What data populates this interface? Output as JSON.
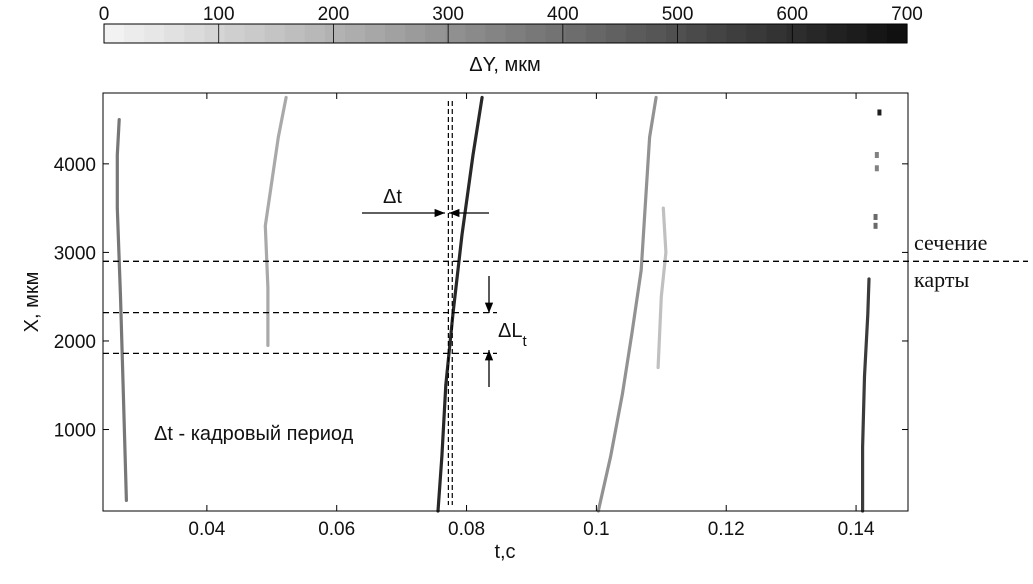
{
  "chart_data": {
    "type": "heatmap",
    "colorbar": {
      "label": "ΔY, мкм",
      "range": [
        0,
        700
      ],
      "ticks": [
        "0",
        "100",
        "200",
        "300",
        "400",
        "500",
        "600",
        "700"
      ],
      "tick_values": [
        0,
        100,
        200,
        300,
        400,
        500,
        600,
        700
      ],
      "colormap": "white-to-black"
    },
    "xlabel": "t,c",
    "ylabel": "X, мкм",
    "xlim": [
      0.024,
      0.148
    ],
    "ylim": [
      80,
      4800
    ],
    "x_ticks": [
      0.04,
      0.06,
      0.08,
      0.1,
      0.12,
      0.14
    ],
    "x_tick_labels": [
      "0.04",
      "0.06",
      "0.08",
      "0.1",
      "0.12",
      "0.14"
    ],
    "y_ticks": [
      1000,
      2000,
      3000,
      4000
    ],
    "y_tick_labels": [
      "1000",
      "2000",
      "3000",
      "4000"
    ],
    "grid": false,
    "traces": [
      {
        "id": "trace-1",
        "points": [
          [
            0.0276,
            200
          ],
          [
            0.0271,
            1500
          ],
          [
            0.0267,
            2500
          ],
          [
            0.0262,
            3500
          ],
          [
            0.0262,
            4100
          ],
          [
            0.0265,
            4500
          ]
        ],
        "dY": 380
      },
      {
        "id": "trace-2",
        "points": [
          [
            0.0494,
            1950
          ],
          [
            0.0494,
            2600
          ],
          [
            0.049,
            3300
          ],
          [
            0.05,
            3800
          ],
          [
            0.051,
            4300
          ],
          [
            0.0522,
            4750
          ]
        ],
        "dY": 230
      },
      {
        "id": "trace-3",
        "points": [
          [
            0.0756,
            80
          ],
          [
            0.0762,
            700
          ],
          [
            0.0768,
            1500
          ],
          [
            0.0779,
            2300
          ],
          [
            0.0793,
            3200
          ],
          [
            0.081,
            4100
          ],
          [
            0.0824,
            4750
          ]
        ],
        "dY": 620
      },
      {
        "id": "trace-4",
        "points": [
          [
            0.1003,
            80
          ],
          [
            0.1022,
            700
          ],
          [
            0.104,
            1400
          ],
          [
            0.1055,
            2100
          ],
          [
            0.1069,
            2800
          ],
          [
            0.1075,
            3500
          ],
          [
            0.1082,
            4300
          ],
          [
            0.1092,
            4750
          ]
        ],
        "dY": 300
      },
      {
        "id": "trace-5",
        "points": [
          [
            0.1095,
            1700
          ],
          [
            0.11,
            2500
          ],
          [
            0.1107,
            3000
          ],
          [
            0.1103,
            3500
          ]
        ],
        "dY": 160
      },
      {
        "id": "trace-6",
        "points": [
          [
            0.141,
            80
          ],
          [
            0.141,
            800
          ],
          [
            0.1413,
            1600
          ],
          [
            0.1418,
            2300
          ],
          [
            0.142,
            2700
          ]
        ],
        "dY": 560
      }
    ],
    "specks": [
      {
        "x": 0.1436,
        "y": 4580,
        "dY": 650
      },
      {
        "x": 0.1432,
        "y": 4100,
        "dY": 350
      },
      {
        "x": 0.1432,
        "y": 3950,
        "dY": 350
      },
      {
        "x": 0.143,
        "y": 3400,
        "dY": 420
      },
      {
        "x": 0.143,
        "y": 3300,
        "dY": 420
      }
    ],
    "reference_lines": {
      "section_y": 2900,
      "lt_lower_y": 1860,
      "lt_upper_y": 2320,
      "dt_lines_x": [
        0.0772,
        0.0778
      ]
    },
    "annotations": {
      "section_line1": "сечение",
      "section_line2": "карты",
      "dt": "Δt",
      "dl_main": "ΔL",
      "dl_sub": "t",
      "period": "Δt - кадровый период"
    }
  }
}
